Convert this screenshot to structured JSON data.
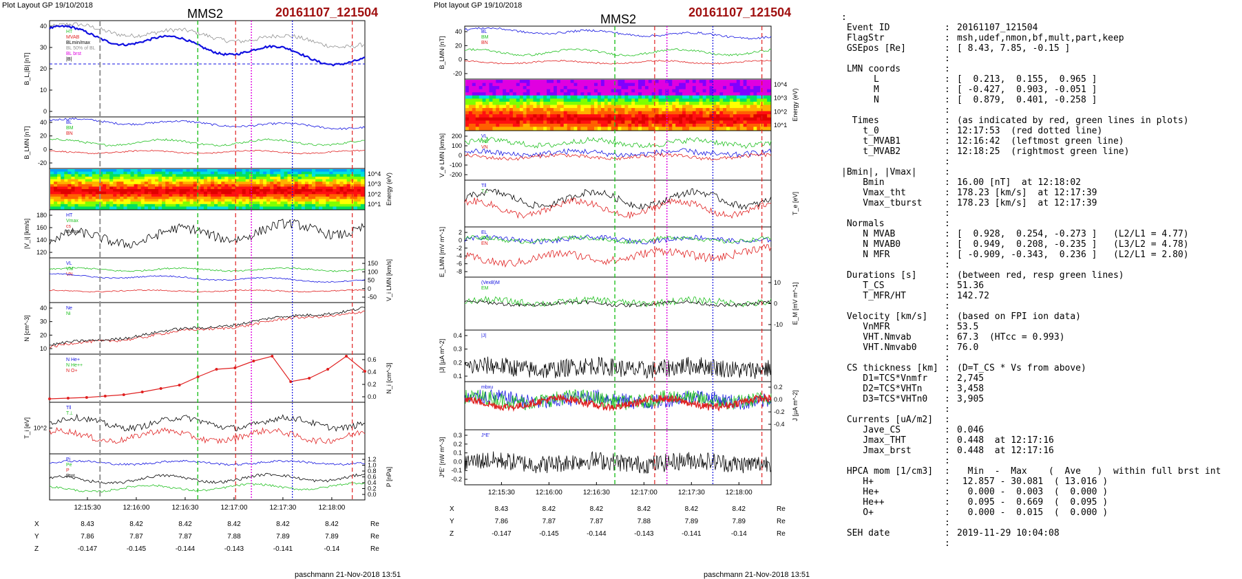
{
  "left_header": {
    "layout_label": "Plot Layout GP 19/10/2018",
    "spacecraft": "MMS2",
    "event": "20161107_121504"
  },
  "mid_header": {
    "layout_label": "Plot layout GP 19/10/2018",
    "spacecraft": "MMS2",
    "event": "20161107_121504"
  },
  "footer": {
    "left": "paschmann 21-Nov-2018 13:51",
    "mid": "paschmann 21-Nov-2018 13:51"
  },
  "colors": {
    "red": "#e02020",
    "green": "#20c020",
    "blue": "#1010e0",
    "magenta": "#e000e0",
    "black": "#000000",
    "gray": "#909090",
    "event": "#a01010"
  },
  "chart_data": [
    {
      "type": "line",
      "title": "MMS2 20161107_121504 (left stack)",
      "x_ticks": [
        "12:15:30",
        "12:16:00",
        "12:16:30",
        "12:17:00",
        "12:17:30",
        "12:18:00"
      ],
      "position_table": {
        "rows": [
          {
            "label": "X",
            "values": [
              "8.43",
              "8.42",
              "8.42",
              "8.42",
              "8.42",
              "8.42"
            ],
            "unit": "Re"
          },
          {
            "label": "Y",
            "values": [
              "7.86",
              "7.87",
              "7.87",
              "7.88",
              "7.89",
              "7.89"
            ],
            "unit": "Re"
          },
          {
            "label": "Z",
            "values": [
              "-0.147",
              "-0.145",
              "-0.144",
              "-0.143",
              "-0.141",
              "-0.14"
            ],
            "unit": "Re"
          }
        ]
      },
      "panels": [
        {
          "key": "bl",
          "ylabel": "B_L,|B| [nT]",
          "ylim": [
            0,
            45
          ],
          "yticks": [
            "40",
            "30",
            "20",
            "10",
            "0"
          ],
          "axis_side": "left",
          "legend": [
            "cs",
            "HT",
            "MVAB",
            "BLmin/max",
            "BL 50% of BL",
            "BL brst",
            "|B|"
          ]
        },
        {
          "key": "blmn",
          "ylabel": "B_LMN [nT]",
          "ylim": [
            -30,
            45
          ],
          "yticks": [
            "40",
            "20",
            "0",
            "-20"
          ],
          "axis_side": "left",
          "legend": [
            "BL",
            "BM",
            "BN"
          ]
        },
        {
          "key": "ion_spec",
          "ylabel": "Energy (eV)",
          "yticks": [
            "10^4",
            "10^3",
            "10^2",
            "10^1"
          ],
          "axis_side": "right",
          "legend": []
        },
        {
          "key": "vi",
          "ylabel": "|V_i| [km/s]",
          "ylim": [
            110,
            180
          ],
          "yticks": [
            "180",
            "160",
            "140",
            "120"
          ],
          "axis_side": "left",
          "legend": [
            "HT",
            "Vmax",
            "cs",
            "dVmax"
          ]
        },
        {
          "key": "vilmn",
          "ylabel": "V_i LMN [km/s]",
          "ylim": [
            -60,
            170
          ],
          "yticks": [
            "150",
            "100",
            "50",
            "0",
            "-50"
          ],
          "axis_side": "right",
          "legend": [
            "VL",
            "VM",
            "VN"
          ]
        },
        {
          "key": "n",
          "ylabel": "N [cm^-3]",
          "ylim": [
            5,
            42
          ],
          "yticks": [
            "40",
            "30",
            "20",
            "10"
          ],
          "axis_side": "left",
          "legend": [
            "Ne",
            "Ni"
          ]
        },
        {
          "key": "nhpca",
          "ylabel": "N_i [cm^-3]",
          "ylim": [
            0,
            0.7
          ],
          "yticks": [
            "0.6",
            "0.4",
            "0.2",
            "0.0"
          ],
          "axis_side": "right",
          "legend": [
            "N He+",
            "N He++",
            "N O+"
          ],
          "he_pp_values": [
            0.05,
            0.06,
            0.07,
            0.09,
            0.11,
            0.15,
            0.2,
            0.25,
            0.37,
            0.48,
            0.5,
            0.6,
            0.67,
            0.3,
            0.35,
            0.48,
            0.67,
            0.45
          ]
        },
        {
          "key": "ti",
          "ylabel": "T_i [eV]",
          "yticks": [
            "10^2"
          ],
          "axis_side": "left",
          "legend": [
            "T‖",
            "T⊥"
          ]
        },
        {
          "key": "p",
          "ylabel": "P [nPa]",
          "ylim": [
            0,
            1.3
          ],
          "yticks": [
            "1.2",
            "1.0",
            "0.8",
            "0.6",
            "0.4",
            "0.2",
            "0.0"
          ],
          "axis_side": "right",
          "legend": [
            "Pi",
            "Pe",
            "P",
            "Ptot"
          ]
        }
      ]
    },
    {
      "type": "line",
      "title": "MMS2 20161107_121504 (middle stack)",
      "x_ticks": [
        "12:15:30",
        "12:16:00",
        "12:16:30",
        "12:17:00",
        "12:17:30",
        "12:18:00"
      ],
      "position_table": {
        "rows": [
          {
            "label": "X",
            "values": [
              "8.43",
              "8.42",
              "8.42",
              "8.42",
              "8.42",
              "8.42"
            ],
            "unit": "Re"
          },
          {
            "label": "Y",
            "values": [
              "7.86",
              "7.87",
              "7.87",
              "7.88",
              "7.89",
              "7.89"
            ],
            "unit": "Re"
          },
          {
            "label": "Z",
            "values": [
              "-0.147",
              "-0.145",
              "-0.144",
              "-0.143",
              "-0.141",
              "-0.14"
            ],
            "unit": "Re"
          }
        ]
      },
      "panels": [
        {
          "key": "blmn",
          "ylabel": "B_LMN [nT]",
          "ylim": [
            -30,
            45
          ],
          "yticks": [
            "40",
            "20",
            "0",
            "-20"
          ],
          "axis_side": "left",
          "legend": [
            "BL",
            "BM",
            "BN"
          ]
        },
        {
          "key": "e_spec",
          "ylabel": "Energy (eV)",
          "yticks": [
            "10^4",
            "10^3",
            "10^2",
            "10^1"
          ],
          "axis_side": "right",
          "legend": []
        },
        {
          "key": "velmn",
          "ylabel": "V_e LMN [km/s]",
          "ylim": [
            -250,
            280
          ],
          "yticks": [
            "200",
            "100",
            "0",
            "-100",
            "-200"
          ],
          "axis_side": "left",
          "legend": [
            "VL",
            "VM",
            "VN"
          ]
        },
        {
          "key": "te",
          "ylabel": "T_e [eV]",
          "yticks": [],
          "axis_side": "right",
          "legend": [
            "T‖",
            "T⊥"
          ]
        },
        {
          "key": "elmn",
          "ylabel": "E_LMN [mV m^-1]",
          "ylim": [
            -9,
            3
          ],
          "yticks": [
            "2",
            "0",
            "-2",
            "-4",
            "-6",
            "-8"
          ],
          "axis_side": "left",
          "legend": [
            "EL",
            "EM",
            "EN"
          ]
        },
        {
          "key": "em",
          "ylabel": "E_M [mV m^-1]",
          "ylim": [
            -15,
            15
          ],
          "yticks": [
            "10",
            "0",
            "-10"
          ],
          "axis_side": "right",
          "legend": [
            "(VexB)M",
            "EM"
          ]
        },
        {
          "key": "j",
          "ylabel": "|J| [µA m^-2]",
          "ylim": [
            0,
            0.45
          ],
          "yticks": [
            "0.4",
            "0.3",
            "0.2",
            "0.1"
          ],
          "axis_side": "left",
          "legend": [
            "|J|"
          ]
        },
        {
          "key": "jlmn",
          "ylabel": "J [µA m^-2]",
          "ylim": [
            -0.5,
            0.3
          ],
          "yticks": [
            "0.2",
            "0.0",
            "-0.2",
            "-0.4"
          ],
          "axis_side": "right",
          "legend": [
            "mbxu"
          ]
        },
        {
          "key": "je",
          "ylabel": "J*E' [nW m^-3]",
          "ylim": [
            -0.22,
            0.32
          ],
          "yticks": [
            "0.3",
            "0.2",
            "0.1",
            "0.0",
            "-0.1",
            "-0.2"
          ],
          "axis_side": "left",
          "legend": [
            "J*E'"
          ]
        }
      ]
    }
  ],
  "info_rows": [
    {
      "k": ":",
      "s": "",
      "v": ""
    },
    {
      "k": " Event ID",
      "s": ":",
      "v": "20161107_121504"
    },
    {
      "k": " FlagStr",
      "s": ":",
      "v": "msh,udef,nmon,bf,mult,part,keep"
    },
    {
      "k": " GSEpos [Re]",
      "s": ":",
      "v": "[ 8.43, 7.85, -0.15 ]"
    },
    {
      "k": "",
      "s": ":",
      "v": ""
    },
    {
      "k": " LMN coords",
      "s": ":",
      "v": ""
    },
    {
      "k": "      L",
      "s": ":",
      "v": "[  0.213,  0.155,  0.965 ]"
    },
    {
      "k": "      M",
      "s": ":",
      "v": "[ -0.427,  0.903, -0.051 ]"
    },
    {
      "k": "      N",
      "s": ":",
      "v": "[  0.879,  0.401, -0.258 ]"
    },
    {
      "k": "",
      "s": ":",
      "v": ""
    },
    {
      "k": "  Times",
      "s": ":",
      "v": "(as indicated by red, green lines in plots)"
    },
    {
      "k": "    t_0",
      "s": ":",
      "v": "12:17:53  (red dotted line)"
    },
    {
      "k": "    t_MVAB1",
      "s": ":",
      "v": "12:16:42  (leftmost green line)"
    },
    {
      "k": "    t_MVAB2",
      "s": ":",
      "v": "12:18:25  (rightmost green line)"
    },
    {
      "k": "",
      "s": ":",
      "v": ""
    },
    {
      "k": "|Bmin|, |Vmax|",
      "s": ":",
      "v": ""
    },
    {
      "k": "    Bmin",
      "s": ":",
      "v": "16.00 [nT]  at 12:18:02"
    },
    {
      "k": "    Vmax_tht",
      "s": ":",
      "v": "178.23 [km/s]  at 12:17:39"
    },
    {
      "k": "    Vmax_tburst",
      "s": ":",
      "v": "178.23 [km/s]  at 12:17:39"
    },
    {
      "k": "",
      "s": ":",
      "v": ""
    },
    {
      "k": " Normals",
      "s": ":",
      "v": ""
    },
    {
      "k": "    N MVAB",
      "s": ":",
      "v": "[  0.928,  0.254, -0.273 ]   (L2/L1 = 4.77)"
    },
    {
      "k": "    N MVAB0",
      "s": ":",
      "v": "[  0.949,  0.208, -0.235 ]   (L3/L2 = 4.78)"
    },
    {
      "k": "    N MFR",
      "s": ":",
      "v": "[ -0.909, -0.343,  0.236 ]   (L2/L1 = 2.80)"
    },
    {
      "k": "",
      "s": ":",
      "v": ""
    },
    {
      "k": " Durations [s]",
      "s": ":",
      "v": "(between red, resp green lines)"
    },
    {
      "k": "    T_CS",
      "s": ":",
      "v": "51.36"
    },
    {
      "k": "    T_MFR/HT",
      "s": ":",
      "v": "142.72"
    },
    {
      "k": "",
      "s": ":",
      "v": ""
    },
    {
      "k": " Velocity [km/s]",
      "s": ":",
      "v": "(based on FPI ion data)"
    },
    {
      "k": "    VnMFR",
      "s": ":",
      "v": "53.5"
    },
    {
      "k": "    VHT.Nmvab",
      "s": ":",
      "v": "67.3  (HTcc = 0.993)"
    },
    {
      "k": "    VHT.Nmvab0",
      "s": ":",
      "v": "76.0"
    },
    {
      "k": "",
      "s": ":",
      "v": ""
    },
    {
      "k": " CS thickness [km]",
      "s": ":",
      "v": "(D=T_CS * Vs from above)"
    },
    {
      "k": "    D1=TCS*Vnmfr",
      "s": ":",
      "v": "2,745"
    },
    {
      "k": "    D2=TCS*VHTn",
      "s": ":",
      "v": "3,458"
    },
    {
      "k": "    D3=TCS*VHTn0",
      "s": ":",
      "v": "3,905"
    },
    {
      "k": "",
      "s": ":",
      "v": ""
    },
    {
      "k": " Currents [uA/m2]",
      "s": ":",
      "v": ""
    },
    {
      "k": "    Jave_CS",
      "s": ":",
      "v": "0.046"
    },
    {
      "k": "    Jmax_THT",
      "s": ":",
      "v": "0.448  at 12:17:16"
    },
    {
      "k": "    Jmax_brst",
      "s": ":",
      "v": "0.448  at 12:17:16"
    },
    {
      "k": "",
      "s": ":",
      "v": ""
    },
    {
      "k": " HPCA mom [1/cm3]",
      "s": ":",
      "v": "  Min  -  Max    (  Ave   )  within full brst int"
    },
    {
      "k": "    H+",
      "s": ":",
      "v": " 12.857 - 30.081  ( 13.016 )"
    },
    {
      "k": "    He+",
      "s": ":",
      "v": "  0.000 -  0.003  (  0.000 )"
    },
    {
      "k": "    He++",
      "s": ":",
      "v": "  0.095 -  0.669  (  0.095 )"
    },
    {
      "k": "    O+",
      "s": ":",
      "v": "  0.000 -  0.015  (  0.000 )"
    },
    {
      "k": "",
      "s": ":",
      "v": ""
    },
    {
      "k": " SEH date",
      "s": ":",
      "v": "2019-11-29 10:04:08"
    },
    {
      "k": "",
      "s": ":",
      "v": ""
    }
  ]
}
